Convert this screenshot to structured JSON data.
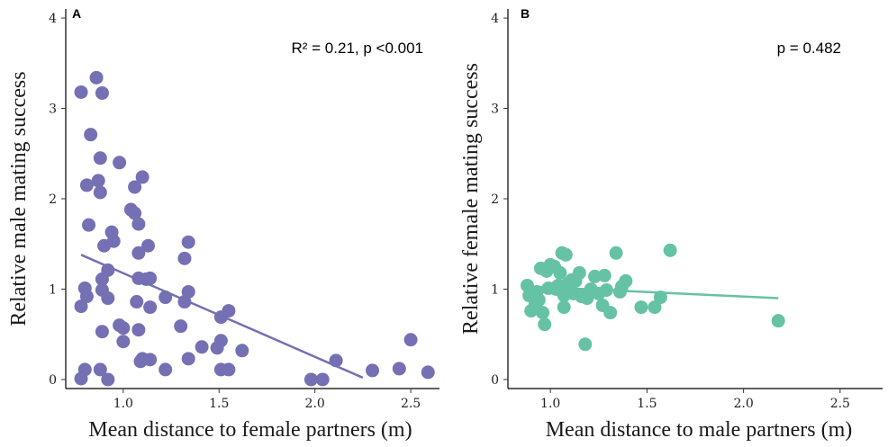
{
  "chart_data": [
    {
      "type": "scatter",
      "panel_label": "A",
      "annotation": "R² = 0.21, p <0.001",
      "xlabel": "Mean distance to female partners (m)",
      "ylabel": "Relative male mating success",
      "xlim": [
        0.7,
        2.65
      ],
      "ylim": [
        -0.1,
        4.1
      ],
      "x_ticks": [
        "1.0",
        "1.5",
        "2.0",
        "2.5"
      ],
      "x_tick_values": [
        1.0,
        1.5,
        2.0,
        2.5
      ],
      "y_ticks": [
        "0",
        "1",
        "2",
        "3",
        "4"
      ],
      "y_tick_values": [
        0,
        1,
        2,
        3,
        4
      ],
      "grid": false,
      "color": "#7570b3",
      "points": [
        [
          0.78,
          3.18
        ],
        [
          0.86,
          3.34
        ],
        [
          0.89,
          3.17
        ],
        [
          0.83,
          2.71
        ],
        [
          0.88,
          2.45
        ],
        [
          0.81,
          2.15
        ],
        [
          0.87,
          2.2
        ],
        [
          0.88,
          2.07
        ],
        [
          0.82,
          1.71
        ],
        [
          0.98,
          2.4
        ],
        [
          1.06,
          2.13
        ],
        [
          1.1,
          2.24
        ],
        [
          1.04,
          1.88
        ],
        [
          1.06,
          1.84
        ],
        [
          1.08,
          1.72
        ],
        [
          0.94,
          1.63
        ],
        [
          0.95,
          1.53
        ],
        [
          0.9,
          1.48
        ],
        [
          1.08,
          1.4
        ],
        [
          1.13,
          1.48
        ],
        [
          0.92,
          1.21
        ],
        [
          0.89,
          1.11
        ],
        [
          0.8,
          1.01
        ],
        [
          0.89,
          0.99
        ],
        [
          0.92,
          0.9
        ],
        [
          0.81,
          0.92
        ],
        [
          0.78,
          0.81
        ],
        [
          1.08,
          1.12
        ],
        [
          1.12,
          1.11
        ],
        [
          1.14,
          1.12
        ],
        [
          1.07,
          0.86
        ],
        [
          1.14,
          0.8
        ],
        [
          1.22,
          0.91
        ],
        [
          1.32,
          1.34
        ],
        [
          1.34,
          1.52
        ],
        [
          1.34,
          0.97
        ],
        [
          1.32,
          0.86
        ],
        [
          1.3,
          0.59
        ],
        [
          0.89,
          0.53
        ],
        [
          0.98,
          0.6
        ],
        [
          1.0,
          0.57
        ],
        [
          1.08,
          0.55
        ],
        [
          1.0,
          0.42
        ],
        [
          1.1,
          0.23
        ],
        [
          1.09,
          0.2
        ],
        [
          1.14,
          0.22
        ],
        [
          1.22,
          0.11
        ],
        [
          1.34,
          0.23
        ],
        [
          1.41,
          0.36
        ],
        [
          1.49,
          0.35
        ],
        [
          1.51,
          0.43
        ],
        [
          1.51,
          0.69
        ],
        [
          1.55,
          0.76
        ],
        [
          1.62,
          0.32
        ],
        [
          1.51,
          0.11
        ],
        [
          1.55,
          0.11
        ],
        [
          0.8,
          0.11
        ],
        [
          0.88,
          0.11
        ],
        [
          0.78,
          0.01
        ],
        [
          0.92,
          0.0
        ],
        [
          1.98,
          0.0
        ],
        [
          2.04,
          0.0
        ],
        [
          2.11,
          0.21
        ],
        [
          2.3,
          0.1
        ],
        [
          2.44,
          0.12
        ],
        [
          2.5,
          0.44
        ],
        [
          2.59,
          0.08
        ]
      ],
      "trendline": {
        "x": [
          0.78,
          2.25
        ],
        "y": [
          1.38,
          0.02
        ]
      }
    },
    {
      "type": "scatter",
      "panel_label": "B",
      "annotation": "p = 0.482",
      "xlabel": "Mean distance to male partners (m)",
      "ylabel": "Relative female mating success",
      "xlim": [
        0.78,
        2.72
      ],
      "ylim": [
        -0.1,
        4.1
      ],
      "x_ticks": [
        "1.0",
        "1.5",
        "2.0",
        "2.5"
      ],
      "x_tick_values": [
        1.0,
        1.5,
        2.0,
        2.5
      ],
      "y_ticks": [
        "0",
        "1",
        "2",
        "3",
        "4"
      ],
      "y_tick_values": [
        0,
        1,
        2,
        3,
        4
      ],
      "grid": false,
      "color": "#66c2a5",
      "points": [
        [
          0.88,
          1.04
        ],
        [
          0.89,
          0.93
        ],
        [
          0.9,
          0.76
        ],
        [
          0.92,
          0.82
        ],
        [
          0.93,
          0.97
        ],
        [
          0.94,
          0.88
        ],
        [
          0.95,
          1.23
        ],
        [
          0.96,
          0.74
        ],
        [
          0.97,
          0.61
        ],
        [
          0.98,
          1.2
        ],
        [
          1.0,
          1.27
        ],
        [
          1.02,
          1.25
        ],
        [
          1.03,
          1.0
        ],
        [
          1.04,
          1.04
        ],
        [
          1.05,
          1.18
        ],
        [
          1.06,
          1.4
        ],
        [
          1.07,
          0.93
        ],
        [
          1.08,
          1.38
        ],
        [
          1.09,
          1.06
        ],
        [
          1.1,
          0.98
        ],
        [
          1.12,
          0.95
        ],
        [
          1.13,
          1.09
        ],
        [
          1.15,
          1.18
        ],
        [
          1.16,
          0.92
        ],
        [
          1.18,
          0.39
        ],
        [
          1.19,
          0.9
        ],
        [
          1.21,
          1.0
        ],
        [
          1.23,
          1.14
        ],
        [
          1.25,
          0.95
        ],
        [
          1.27,
          0.82
        ],
        [
          1.28,
          1.15
        ],
        [
          1.29,
          0.99
        ],
        [
          1.31,
          0.74
        ],
        [
          1.34,
          1.4
        ],
        [
          1.36,
          0.97
        ],
        [
          1.37,
          1.03
        ],
        [
          1.39,
          1.09
        ],
        [
          1.47,
          0.8
        ],
        [
          1.54,
          0.8
        ],
        [
          1.57,
          0.91
        ],
        [
          1.62,
          1.43
        ],
        [
          2.18,
          0.65
        ],
        [
          1.07,
          0.8
        ],
        [
          0.99,
          1.01
        ],
        [
          1.11,
          1.1
        ]
      ],
      "trendline": {
        "x": [
          0.88,
          2.18
        ],
        "y": [
          1.03,
          0.9
        ]
      }
    }
  ]
}
